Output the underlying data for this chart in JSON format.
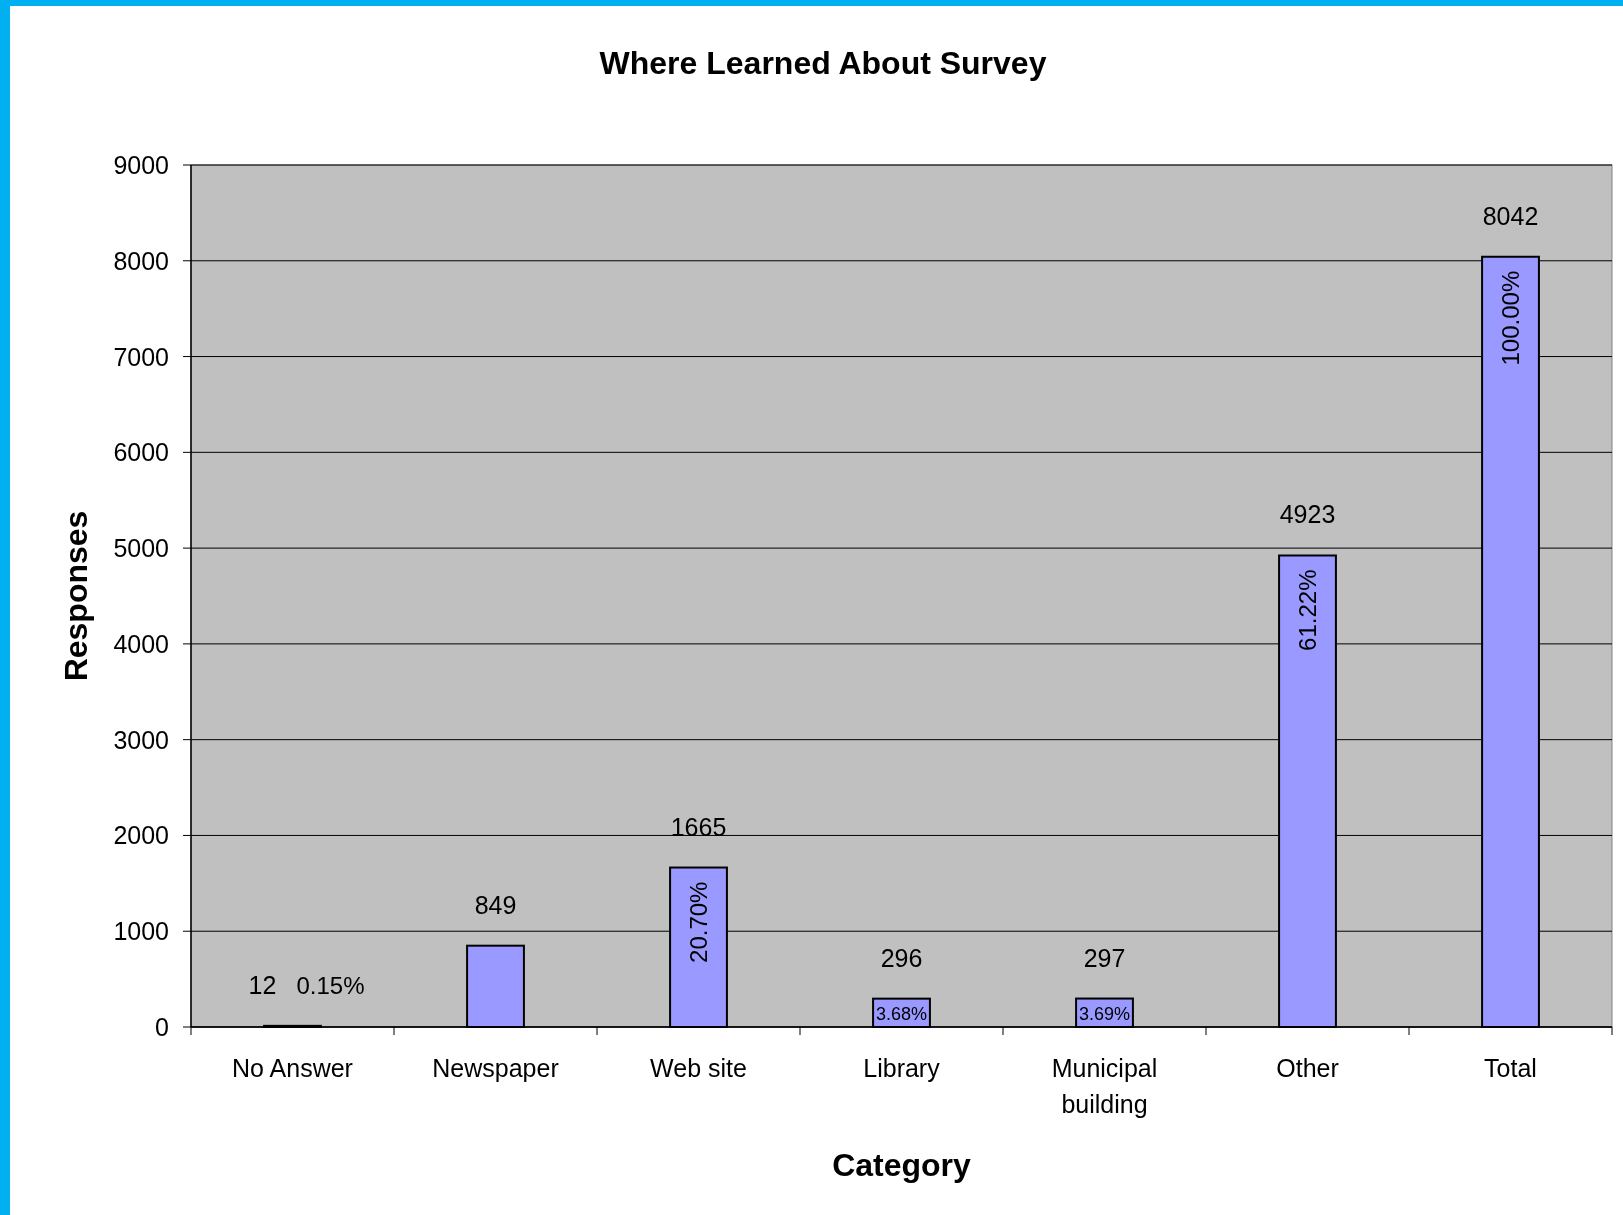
{
  "chart_data": {
    "type": "bar",
    "title": "Where Learned About Survey",
    "xlabel": "Category",
    "ylabel": "Responses",
    "categories": [
      "No Answer",
      "Newspaper",
      "Web site",
      "Library",
      "Municipal building",
      "Other",
      "Total"
    ],
    "values": [
      12,
      849,
      1665,
      296,
      297,
      4923,
      8042
    ],
    "color": "#9999ff",
    "ylim": [
      0,
      9000
    ],
    "yticks": [
      0,
      1000,
      2000,
      3000,
      4000,
      5000,
      6000,
      7000,
      8000,
      9000
    ],
    "grid": "y",
    "data_labels": true,
    "annotations": [
      {
        "text": "0.15%",
        "x": "No Answer",
        "y": 12
      },
      {
        "text": "20.70%",
        "x": "Web site",
        "y": 1665
      },
      {
        "text": "3.68%",
        "x": "Library",
        "y": 296
      },
      {
        "text": "3.69%",
        "x": "Municipal building",
        "y": 297
      },
      {
        "text": "61.22%",
        "x": "Other",
        "y": 4923
      },
      {
        "text": "100.00%",
        "x": "Total",
        "y": 8042
      }
    ]
  }
}
